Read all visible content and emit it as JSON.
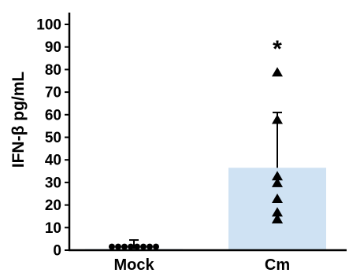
{
  "chart_data": {
    "type": "bar",
    "ylabel": "IFN-β pg/mL",
    "ylim": [
      0,
      100
    ],
    "yticks": [
      0,
      10,
      20,
      30,
      40,
      50,
      60,
      70,
      80,
      90,
      100
    ],
    "grid": false,
    "categories": [
      "Mock",
      "Cm"
    ],
    "values": [
      0.5,
      36.5
    ],
    "error_upper": [
      4.5,
      61
    ],
    "bar_colors": [
      "#cfe2f3",
      "#cfe2f3"
    ],
    "points": [
      {
        "category": "Mock",
        "marker": "circle",
        "values": [
          0.5,
          0.5,
          0.5,
          0.5,
          0.5,
          0.5,
          0.5,
          0.5
        ]
      },
      {
        "category": "Cm",
        "marker": "triangle",
        "values": [
          79,
          58,
          33,
          30,
          23,
          17,
          14,
          14
        ]
      }
    ],
    "annotations": [
      {
        "category": "Cm",
        "text": "*",
        "y": 92
      }
    ]
  }
}
